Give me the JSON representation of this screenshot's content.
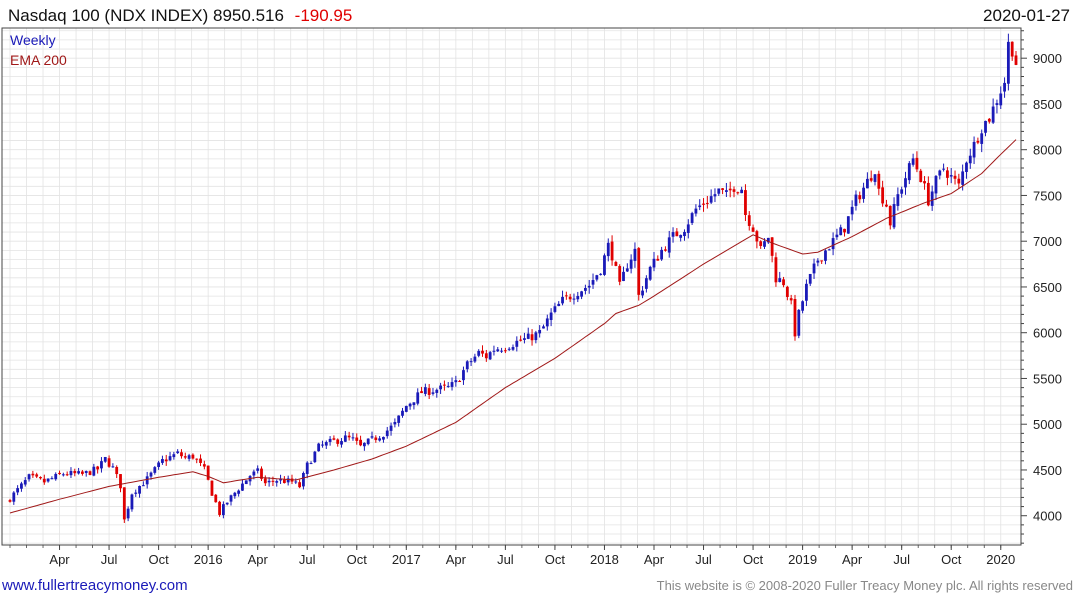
{
  "header": {
    "title": "Nasdaq 100 (NDX INDEX) 8950.516",
    "change": "-190.95",
    "date": "2020-01-27"
  },
  "legend": {
    "series1": "Weekly",
    "series2": "EMA 200"
  },
  "footer": {
    "website": "www.fullertreacymoney.com",
    "copyright": "This website is © 2008-2020 Fuller Treacy Money plc. All rights reserved"
  },
  "colors": {
    "up_candle": "#1a1ab8",
    "down_candle": "#e00000",
    "ema": "#a01818",
    "grid": "#e3e3e3",
    "axis": "#444444",
    "change_text": "#e00000",
    "legend_weekly": "#1a1ab8",
    "legend_ema": "#a01818",
    "link": "#1a1ab8",
    "footer_text": "#888888"
  },
  "chart_data": {
    "type": "candlestick",
    "title": "Nasdaq 100 (NDX INDEX) 8950.516 -190.95",
    "date": "2020-01-27",
    "frequency": "Weekly",
    "x_ticks": [
      "Apr",
      "Jul",
      "Oct",
      "2016",
      "Apr",
      "Jul",
      "Oct",
      "2017",
      "Apr",
      "Jul",
      "Oct",
      "2018",
      "Apr",
      "Jul",
      "Oct",
      "2019",
      "Apr",
      "Jul",
      "Oct",
      "2020"
    ],
    "y_ticks": [
      4000,
      4500,
      5000,
      5500,
      6000,
      6500,
      7000,
      7500,
      8000,
      8500,
      9000
    ],
    "ylim": [
      3680,
      9330
    ],
    "x_range": [
      0,
      264
    ],
    "x_tick_positions": [
      13,
      26,
      39,
      52,
      65,
      78,
      91,
      104,
      117,
      130,
      143,
      156,
      169,
      182,
      195,
      208,
      221,
      234,
      247,
      260
    ],
    "grid": true,
    "close_keypoints": [
      [
        0,
        4190
      ],
      [
        5,
        4420
      ],
      [
        9,
        4370
      ],
      [
        14,
        4460
      ],
      [
        19,
        4450
      ],
      [
        23,
        4510
      ],
      [
        25,
        4620
      ],
      [
        27,
        4520
      ],
      [
        29,
        4330
      ],
      [
        30,
        3950
      ],
      [
        32,
        4250
      ],
      [
        36,
        4400
      ],
      [
        40,
        4600
      ],
      [
        44,
        4680
      ],
      [
        46,
        4630
      ],
      [
        48,
        4650
      ],
      [
        51,
        4500
      ],
      [
        53,
        4250
      ],
      [
        55,
        4030
      ],
      [
        57,
        4150
      ],
      [
        60,
        4300
      ],
      [
        63,
        4440
      ],
      [
        65,
        4480
      ],
      [
        67,
        4350
      ],
      [
        70,
        4390
      ],
      [
        74,
        4370
      ],
      [
        76,
        4320
      ],
      [
        78,
        4550
      ],
      [
        81,
        4750
      ],
      [
        84,
        4800
      ],
      [
        88,
        4850
      ],
      [
        90,
        4830
      ],
      [
        92,
        4750
      ],
      [
        95,
        4830
      ],
      [
        98,
        4900
      ],
      [
        101,
        5000
      ],
      [
        104,
        5200
      ],
      [
        108,
        5350
      ],
      [
        112,
        5380
      ],
      [
        115,
        5400
      ],
      [
        117,
        5450
      ],
      [
        120,
        5650
      ],
      [
        123,
        5780
      ],
      [
        125,
        5740
      ],
      [
        127,
        5820
      ],
      [
        130,
        5850
      ],
      [
        133,
        5900
      ],
      [
        136,
        5940
      ],
      [
        139,
        6000
      ],
      [
        140,
        6060
      ],
      [
        142,
        6200
      ],
      [
        145,
        6350
      ],
      [
        149,
        6450
      ],
      [
        152,
        6520
      ],
      [
        155,
        6700
      ],
      [
        157,
        6950
      ],
      [
        158,
        6850
      ],
      [
        160,
        6500
      ],
      [
        162,
        6750
      ],
      [
        164,
        6900
      ],
      [
        165,
        6400
      ],
      [
        167,
        6600
      ],
      [
        168,
        6700
      ],
      [
        171,
        6900
      ],
      [
        174,
        7050
      ],
      [
        177,
        7150
      ],
      [
        180,
        7350
      ],
      [
        183,
        7450
      ],
      [
        186,
        7550
      ],
      [
        188,
        7500
      ],
      [
        190,
        7600
      ],
      [
        192,
        7580
      ],
      [
        193,
        7300
      ],
      [
        195,
        7150
      ],
      [
        197,
        6900
      ],
      [
        199,
        7050
      ],
      [
        201,
        6600
      ],
      [
        203,
        6550
      ],
      [
        205,
        6300
      ],
      [
        206,
        6000
      ],
      [
        207,
        6200
      ],
      [
        209,
        6500
      ],
      [
        212,
        6800
      ],
      [
        216,
        7000
      ],
      [
        219,
        7150
      ],
      [
        222,
        7450
      ],
      [
        225,
        7650
      ],
      [
        227,
        7800
      ],
      [
        228,
        7550
      ],
      [
        230,
        7400
      ],
      [
        231,
        7200
      ],
      [
        233,
        7500
      ],
      [
        235,
        7700
      ],
      [
        237,
        7900
      ],
      [
        239,
        7700
      ],
      [
        241,
        7450
      ],
      [
        243,
        7650
      ],
      [
        245,
        7800
      ],
      [
        247,
        7700
      ],
      [
        249,
        7600
      ],
      [
        251,
        7900
      ],
      [
        253,
        8050
      ],
      [
        255,
        8250
      ],
      [
        257,
        8350
      ],
      [
        259,
        8550
      ],
      [
        261,
        8750
      ],
      [
        262,
        9150
      ],
      [
        263,
        9100
      ],
      [
        264,
        8950
      ]
    ],
    "ema_keypoints": [
      [
        0,
        4030
      ],
      [
        13,
        4180
      ],
      [
        26,
        4320
      ],
      [
        39,
        4420
      ],
      [
        48,
        4480
      ],
      [
        52,
        4430
      ],
      [
        56,
        4360
      ],
      [
        65,
        4420
      ],
      [
        75,
        4390
      ],
      [
        85,
        4500
      ],
      [
        95,
        4620
      ],
      [
        104,
        4760
      ],
      [
        117,
        5020
      ],
      [
        130,
        5400
      ],
      [
        143,
        5720
      ],
      [
        156,
        6100
      ],
      [
        159,
        6210
      ],
      [
        165,
        6300
      ],
      [
        169,
        6400
      ],
      [
        182,
        6750
      ],
      [
        195,
        7070
      ],
      [
        200,
        6980
      ],
      [
        208,
        6860
      ],
      [
        212,
        6880
      ],
      [
        221,
        7050
      ],
      [
        230,
        7250
      ],
      [
        240,
        7420
      ],
      [
        247,
        7520
      ],
      [
        255,
        7740
      ],
      [
        260,
        7950
      ],
      [
        264,
        8110
      ]
    ]
  }
}
